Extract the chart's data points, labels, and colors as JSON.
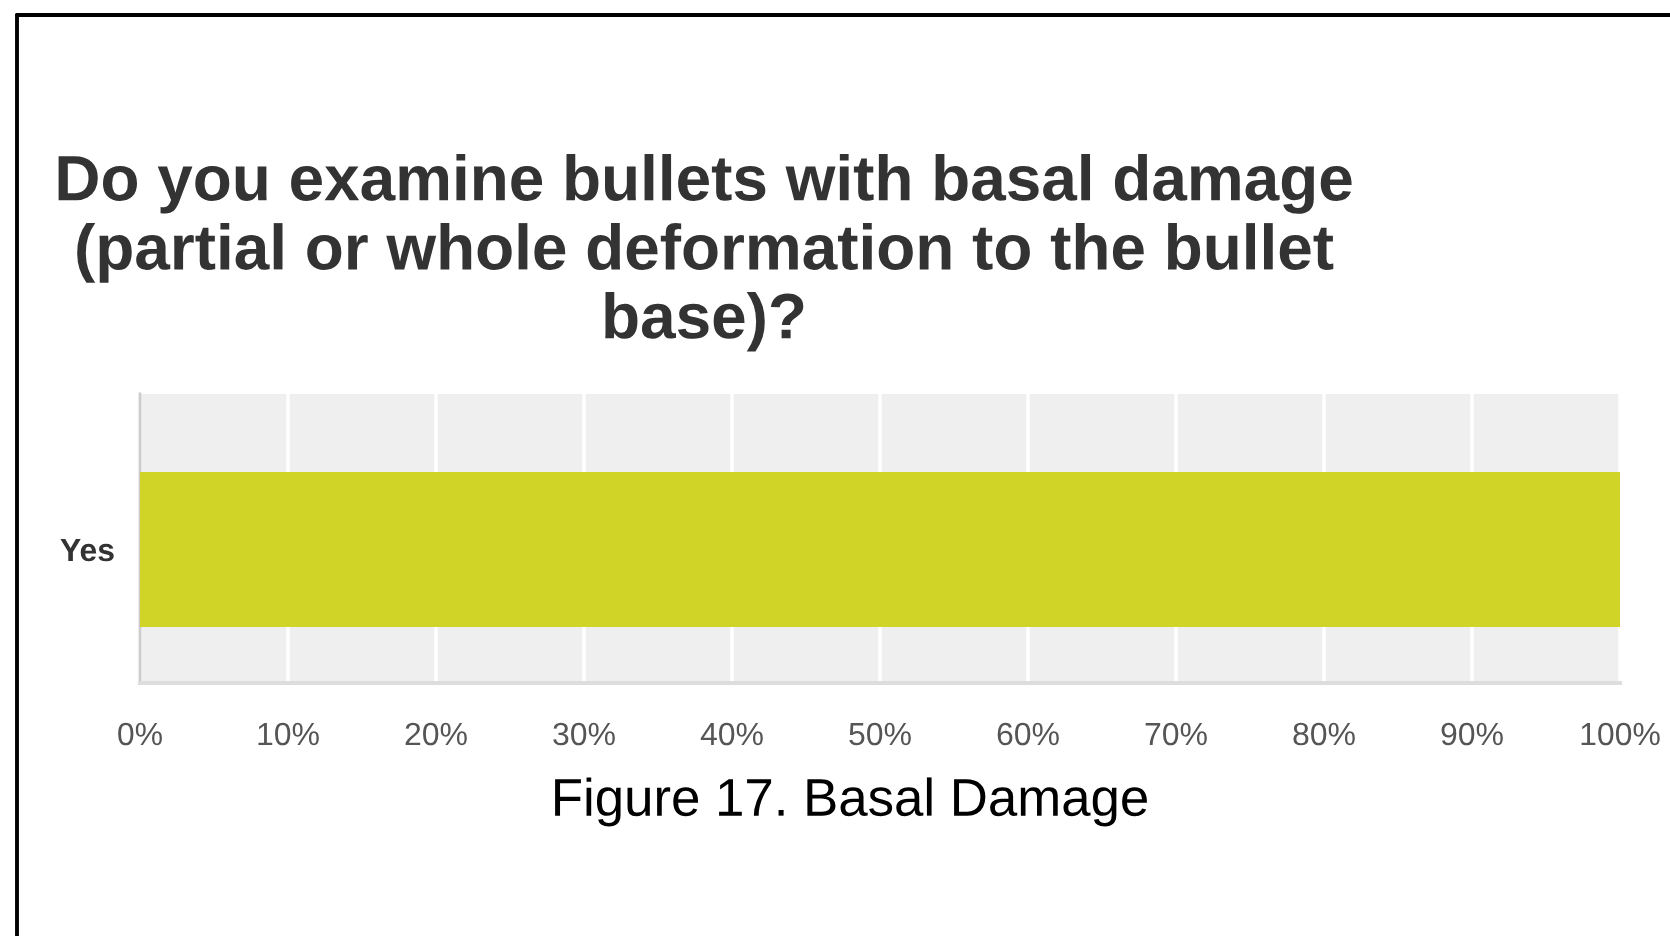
{
  "chart_data": {
    "type": "bar",
    "orientation": "horizontal",
    "title": "Do you examine bullets with basal damage (partial or whole deformation to the bullet base)?",
    "annotations": [
      "Figure 17. Basal Damage"
    ],
    "categories": [
      "Yes"
    ],
    "values": [
      100
    ],
    "color": "#cfd427",
    "xlim": [
      0,
      100
    ],
    "xticks": [
      {
        "value": 0,
        "label": "0%"
      },
      {
        "value": 10,
        "label": "10%"
      },
      {
        "value": 20,
        "label": "20%"
      },
      {
        "value": 30,
        "label": "30%"
      },
      {
        "value": 40,
        "label": "40%"
      },
      {
        "value": 50,
        "label": "50%"
      },
      {
        "value": 60,
        "label": "60%"
      },
      {
        "value": 70,
        "label": "70%"
      },
      {
        "value": 80,
        "label": "80%"
      },
      {
        "value": 90,
        "label": "90%"
      },
      {
        "value": 100,
        "label": "100%"
      }
    ],
    "grid": "x"
  }
}
